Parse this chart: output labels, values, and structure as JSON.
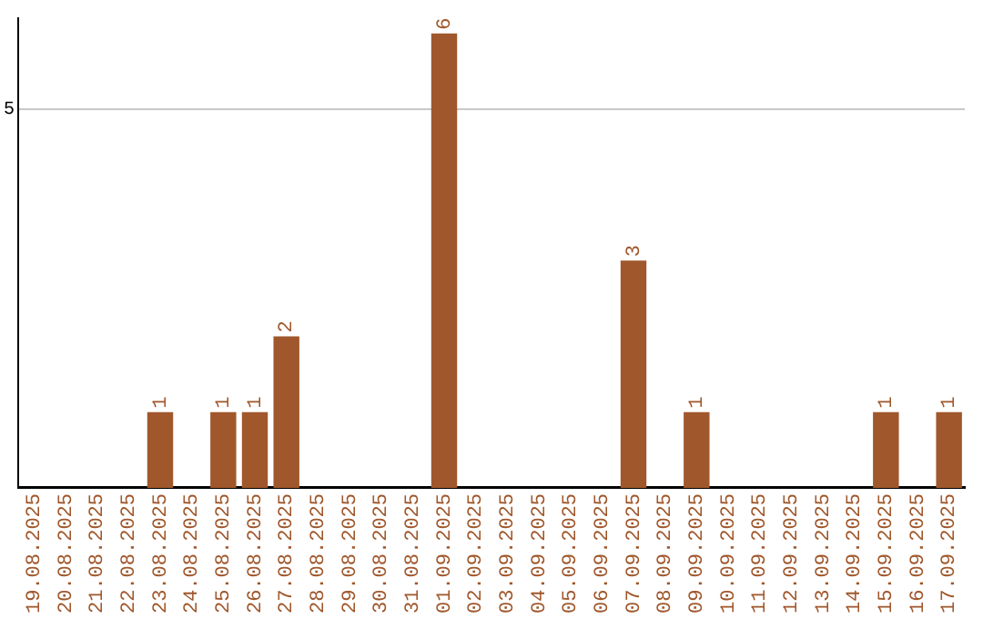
{
  "chart_data": {
    "type": "bar",
    "categories": [
      "19.08.2025",
      "20.08.2025",
      "21.08.2025",
      "22.08.2025",
      "23.08.2025",
      "24.08.2025",
      "25.08.2025",
      "26.08.2025",
      "27.08.2025",
      "28.08.2025",
      "29.08.2025",
      "30.08.2025",
      "31.08.2025",
      "01.09.2025",
      "02.09.2025",
      "03.09.2025",
      "04.09.2025",
      "05.09.2025",
      "06.09.2025",
      "07.09.2025",
      "08.09.2025",
      "09.09.2025",
      "10.09.2025",
      "11.09.2025",
      "12.09.2025",
      "13.09.2025",
      "14.09.2025",
      "15.09.2025",
      "16.09.2025",
      "17.09.2025"
    ],
    "values": [
      0,
      0,
      0,
      0,
      1,
      0,
      1,
      1,
      2,
      0,
      0,
      0,
      0,
      6,
      0,
      0,
      0,
      0,
      0,
      3,
      0,
      1,
      0,
      0,
      0,
      0,
      0,
      1,
      0,
      1
    ],
    "value_labels": [
      null,
      null,
      null,
      null,
      "1",
      null,
      "1",
      "1",
      "2",
      null,
      null,
      null,
      null,
      "6",
      null,
      null,
      null,
      null,
      null,
      "3",
      null,
      "1",
      null,
      null,
      null,
      null,
      null,
      "1",
      null,
      "1"
    ],
    "color": "#a0572b",
    "ylim": [
      0,
      6.2
    ],
    "yticks": [
      5
    ],
    "grid": "y"
  }
}
